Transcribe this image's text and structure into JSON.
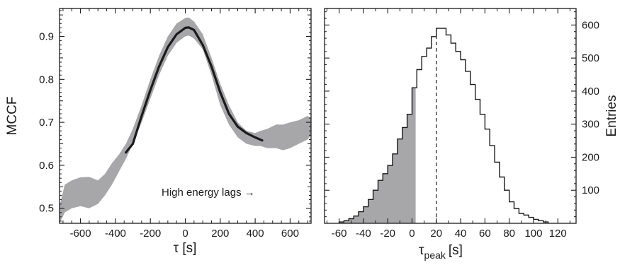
{
  "chart_data": [
    {
      "type": "line",
      "panel": "left",
      "xlabel": "τ [s]",
      "ylabel": "MCCF",
      "xlim": [
        -720,
        720
      ],
      "ylim": [
        0.465,
        0.965
      ],
      "xticks": [
        -600,
        -400,
        -200,
        0,
        200,
        400,
        600
      ],
      "xtick_labels": [
        "-600",
        "-400",
        "-200",
        "0",
        "200",
        "400",
        "600"
      ],
      "yticks": [
        0.5,
        0.6,
        0.7,
        0.8,
        0.9
      ],
      "ytick_labels": [
        "0.5",
        "0.6",
        "0.7",
        "0.8",
        "0.9"
      ],
      "annotation": "High energy lags →",
      "band_color": "#a7a7a9",
      "line_color": "#1a1a1a",
      "band": {
        "x": [
          -720,
          -690,
          -650,
          -600,
          -550,
          -500,
          -460,
          -420,
          -380,
          -340,
          -300,
          -250,
          -200,
          -150,
          -100,
          -50,
          0,
          20,
          50,
          100,
          150,
          200,
          250,
          300,
          350,
          400,
          430,
          470,
          520,
          560,
          600,
          650,
          700,
          720
        ],
        "upper": [
          0.505,
          0.555,
          0.565,
          0.572,
          0.573,
          0.565,
          0.58,
          0.605,
          0.625,
          0.65,
          0.685,
          0.74,
          0.8,
          0.855,
          0.9,
          0.93,
          0.943,
          0.944,
          0.935,
          0.905,
          0.85,
          0.79,
          0.74,
          0.7,
          0.68,
          0.675,
          0.68,
          0.685,
          0.695,
          0.695,
          0.7,
          0.705,
          0.715,
          0.71
        ],
        "lower": [
          0.465,
          0.49,
          0.5,
          0.505,
          0.5,
          0.51,
          0.53,
          0.555,
          0.585,
          0.615,
          0.65,
          0.7,
          0.755,
          0.81,
          0.855,
          0.885,
          0.9,
          0.902,
          0.895,
          0.87,
          0.81,
          0.74,
          0.695,
          0.665,
          0.65,
          0.645,
          0.645,
          0.64,
          0.64,
          0.635,
          0.64,
          0.65,
          0.66,
          0.67
        ]
      },
      "series": [
        {
          "x": [
            -340,
            -300,
            -250,
            -200,
            -150,
            -100,
            -50,
            0,
            20,
            50,
            100,
            150,
            200,
            250,
            300,
            350,
            400,
            440
          ],
          "y": [
            0.63,
            0.65,
            0.715,
            0.775,
            0.83,
            0.875,
            0.905,
            0.92,
            0.921,
            0.915,
            0.88,
            0.83,
            0.77,
            0.72,
            0.69,
            0.675,
            0.665,
            0.658
          ]
        }
      ]
    },
    {
      "type": "histogram",
      "panel": "right",
      "xlabel_main": "τ",
      "xlabel_sub": "peak",
      "xlabel_unit": "[s]",
      "ylabel": "Entries",
      "xlim": [
        -72,
        135
      ],
      "ylim": [
        0,
        650
      ],
      "xticks": [
        -60,
        -40,
        -20,
        0,
        20,
        40,
        60,
        80,
        100,
        120
      ],
      "xtick_labels": [
        "-60",
        "-40",
        "-20",
        "0",
        "20",
        "40",
        "60",
        "80",
        "100",
        "120"
      ],
      "yticks": [
        100,
        200,
        300,
        400,
        500,
        600
      ],
      "ytick_labels": [
        "100",
        "200",
        "300",
        "400",
        "500",
        "600"
      ],
      "bin_edges": [
        -60,
        -56,
        -52,
        -48,
        -44,
        -40,
        -36,
        -32,
        -28,
        -24,
        -20,
        -16,
        -12,
        -8,
        -4,
        0,
        4,
        8,
        12,
        16,
        20,
        24,
        28,
        32,
        36,
        40,
        44,
        48,
        52,
        56,
        60,
        64,
        68,
        72,
        76,
        80,
        84,
        88,
        92,
        96,
        100,
        104,
        108,
        112
      ],
      "counts": [
        4,
        8,
        14,
        22,
        35,
        50,
        72,
        100,
        130,
        150,
        175,
        210,
        255,
        290,
        330,
        410,
        465,
        505,
        530,
        565,
        590,
        590,
        570,
        545,
        520,
        495,
        460,
        420,
        375,
        330,
        285,
        235,
        185,
        140,
        100,
        65,
        45,
        30,
        25,
        18,
        12,
        8,
        4
      ],
      "shaded_below": 3,
      "shade_color": "#a7a7a9",
      "vline_x": 20
    }
  ]
}
